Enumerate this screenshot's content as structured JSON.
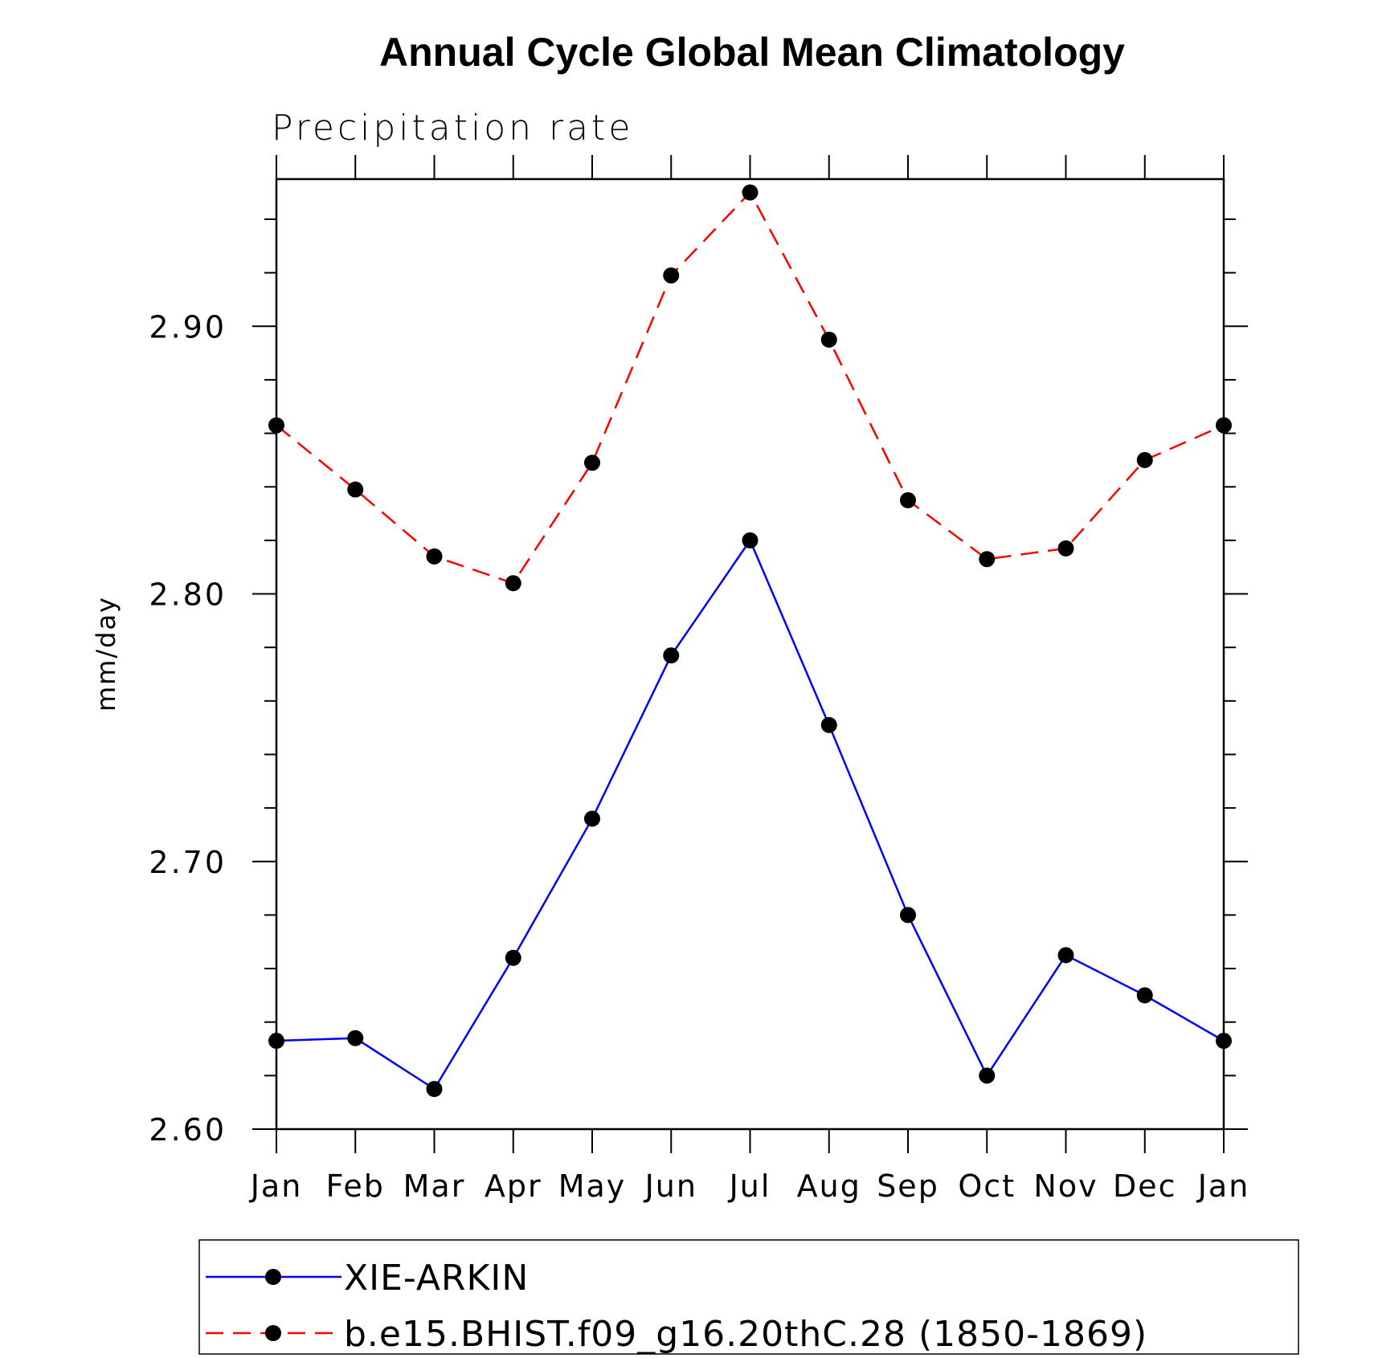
{
  "chart_data": {
    "type": "line",
    "title": "Annual Cycle Global Mean Climatology",
    "subtitle": "Precipitation rate",
    "ylabel": "mm/day",
    "xlabel": "",
    "categories": [
      "Jan",
      "Feb",
      "Mar",
      "Apr",
      "May",
      "Jun",
      "Jul",
      "Aug",
      "Sep",
      "Oct",
      "Nov",
      "Dec",
      "Jan"
    ],
    "ylim": [
      2.6,
      2.955
    ],
    "yticks": [
      2.6,
      2.7,
      2.8,
      2.9
    ],
    "ytick_labels": [
      "2.60",
      "2.70",
      "2.80",
      "2.90"
    ],
    "series": [
      {
        "name": "XIE-ARKIN",
        "color": "#0000ff",
        "dash": "solid",
        "values": [
          2.633,
          2.634,
          2.615,
          2.664,
          2.716,
          2.777,
          2.82,
          2.751,
          2.68,
          2.62,
          2.665,
          2.65,
          2.633
        ]
      },
      {
        "name": "b.e15.BHIST.f09_g16.20thC.28 (1850-1869)",
        "color": "#ff0000",
        "dash": "dashed",
        "values": [
          2.863,
          2.839,
          2.814,
          2.804,
          2.849,
          2.919,
          2.95,
          2.895,
          2.835,
          2.813,
          2.817,
          2.85,
          2.863
        ]
      }
    ],
    "grid": false,
    "legend_position": "bottom"
  }
}
